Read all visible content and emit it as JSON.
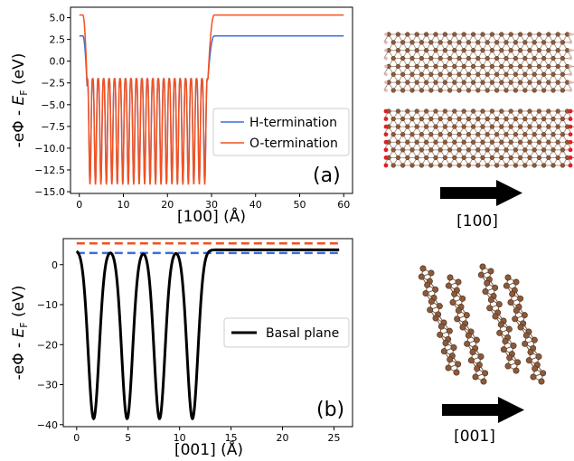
{
  "chart_data": [
    {
      "type": "line",
      "panel_label": "(a)",
      "xlabel": "[100] (Å)",
      "ylabel": "-eΦ - E_F (eV)",
      "xlim": [
        -2,
        62
      ],
      "ylim": [
        -15.2,
        6.2
      ],
      "xticks": [
        0,
        10,
        20,
        30,
        40,
        50,
        60
      ],
      "xtick_labels": [
        "0",
        "10",
        "20",
        "30",
        "40",
        "50",
        "60"
      ],
      "yticks": [
        5.0,
        2.5,
        0.0,
        -2.5,
        -5.0,
        -7.5,
        -10.0,
        -12.5,
        -15.0
      ],
      "ytick_labels": [
        "5.0",
        "2.5",
        "0.0",
        "−2.5",
        "−5.0",
        "−7.5",
        "−10.0",
        "−12.5",
        "−15.0"
      ],
      "legend_position": "center-right",
      "series": [
        {
          "name": "H-termination",
          "color": "#3b6fd8",
          "vacuum_level_left": 2.9,
          "vacuum_level_right": 2.9,
          "slab_x": [
            1.8,
            29.2
          ],
          "well_top": -2.0,
          "well_bottom": -14.0,
          "well_period": 1.24
        },
        {
          "name": "O-termination",
          "color": "#f4511e",
          "vacuum_level_left": 5.3,
          "vacuum_level_right": 5.3,
          "slab_x": [
            1.8,
            29.2
          ],
          "well_top": -2.0,
          "well_bottom": -14.2,
          "well_period": 1.24
        }
      ]
    },
    {
      "type": "line",
      "panel_label": "(b)",
      "xlabel": "[001] (Å)",
      "ylabel": "-eΦ - E_F (eV)",
      "xlim": [
        -1.3,
        26.8
      ],
      "ylim": [
        -40.5,
        6.5
      ],
      "xticks": [
        0,
        5,
        10,
        15,
        20,
        25
      ],
      "xtick_labels": [
        "0",
        "5",
        "10",
        "15",
        "20",
        "25"
      ],
      "yticks": [
        0,
        -10,
        -20,
        -30,
        -40
      ],
      "ytick_labels": [
        "0",
        "−10",
        "−20",
        "−30",
        "−40"
      ],
      "legend_position": "center-right",
      "series": [
        {
          "name": "Basal plane",
          "color": "#000000",
          "baseline": 3.7,
          "minima_x": [
            1.65,
            4.9,
            8.05,
            11.25
          ],
          "minima_y": -38.5,
          "flat_x": [
            12.8,
            25.5
          ]
        }
      ],
      "reference_lines": [
        {
          "value": 5.3,
          "color": "#f4511e",
          "style": "dashed",
          "x_range": [
            0,
            25.5
          ]
        },
        {
          "value": 2.9,
          "color": "#3b6fd8",
          "style": "dashed",
          "x_range": [
            0,
            25.5
          ]
        }
      ]
    }
  ],
  "structures": [
    {
      "direction_label": "[100]",
      "termination": "H",
      "atom_color": "#8b5a3c",
      "term_color": "#e6b4b4"
    },
    {
      "direction_label": "[100]",
      "termination": "O",
      "atom_color": "#8b5a3c",
      "term_color": "#e02020"
    },
    {
      "direction_label": "[001]",
      "atom_color": "#8b5a3c"
    }
  ]
}
